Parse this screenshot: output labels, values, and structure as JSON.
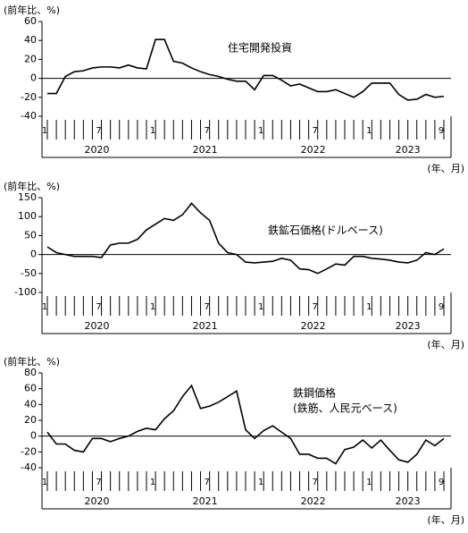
{
  "chart_data": [
    {
      "type": "line",
      "unit_label": "(前年比、%)",
      "xlabel": "(年、月)",
      "annotations": [
        "住宅開発投資"
      ],
      "categories": [
        "1",
        null,
        null,
        null,
        null,
        null,
        "7",
        null,
        null,
        null,
        null,
        null,
        "1",
        null,
        null,
        null,
        null,
        null,
        "7",
        null,
        null,
        null,
        null,
        null,
        "1",
        null,
        null,
        null,
        null,
        null,
        "7",
        null,
        null,
        null,
        null,
        null,
        "1",
        null,
        null,
        null,
        null,
        null,
        null,
        null,
        "9"
      ],
      "groups": [
        "2020",
        "2021",
        "2022",
        "2023"
      ],
      "series": [
        {
          "color": "#000000",
          "values": [
            -16,
            -16,
            2,
            7,
            8,
            11,
            12,
            12,
            11,
            14,
            11,
            10,
            41,
            41,
            18,
            16,
            11,
            7,
            4,
            2,
            -1,
            -3,
            -3,
            -12,
            3,
            3,
            -2,
            -8,
            -6,
            -10,
            -14,
            -14,
            -12,
            -16,
            -20,
            -14,
            -5,
            -5,
            -5,
            -17,
            -23,
            -22,
            -17,
            -20,
            -19
          ]
        }
      ],
      "ylim": [
        -40,
        60
      ],
      "yticks": [
        -40,
        -20,
        0,
        20,
        40,
        60
      ]
    },
    {
      "type": "line",
      "unit_label": "(前年比、%)",
      "xlabel": "(年、月)",
      "annotations": [
        "鉄鉱石価格(ドルベース)"
      ],
      "categories": [
        "1",
        null,
        null,
        null,
        null,
        null,
        "7",
        null,
        null,
        null,
        null,
        null,
        "1",
        null,
        null,
        null,
        null,
        null,
        "7",
        null,
        null,
        null,
        null,
        null,
        "1",
        null,
        null,
        null,
        null,
        null,
        "7",
        null,
        null,
        null,
        null,
        null,
        "1",
        null,
        null,
        null,
        null,
        null,
        null,
        null,
        "9"
      ],
      "groups": [
        "2020",
        "2021",
        "2022",
        "2023"
      ],
      "series": [
        {
          "color": "#000000",
          "values": [
            20,
            5,
            0,
            -5,
            -5,
            -5,
            -8,
            25,
            30,
            30,
            40,
            65,
            80,
            95,
            90,
            105,
            135,
            110,
            90,
            30,
            5,
            0,
            -20,
            -22,
            -20,
            -18,
            -10,
            -15,
            -38,
            -40,
            -50,
            -38,
            -25,
            -28,
            -5,
            -5,
            -10,
            -12,
            -15,
            -20,
            -22,
            -15,
            5,
            0,
            15
          ]
        }
      ],
      "ylim": [
        -100,
        150
      ],
      "yticks": [
        -100,
        -50,
        0,
        50,
        100,
        150
      ]
    },
    {
      "type": "line",
      "unit_label": "(前年比、%)",
      "xlabel": "(年、月)",
      "annotations": [
        "鉄鋼価格",
        "(鉄筋、人民元ベース)"
      ],
      "categories": [
        "1",
        null,
        null,
        null,
        null,
        null,
        "7",
        null,
        null,
        null,
        null,
        null,
        "1",
        null,
        null,
        null,
        null,
        null,
        "7",
        null,
        null,
        null,
        null,
        null,
        "1",
        null,
        null,
        null,
        null,
        null,
        "7",
        null,
        null,
        null,
        null,
        null,
        "1",
        null,
        null,
        null,
        null,
        null,
        null,
        null,
        "9"
      ],
      "groups": [
        "2020",
        "2021",
        "2022",
        "2023"
      ],
      "series": [
        {
          "color": "#000000",
          "values": [
            5,
            -10,
            -10,
            -18,
            -20,
            -3,
            -3,
            -7,
            -3,
            0,
            6,
            10,
            8,
            22,
            32,
            50,
            64,
            35,
            38,
            43,
            50,
            57,
            8,
            -3,
            7,
            13,
            5,
            -3,
            -23,
            -23,
            -28,
            -28,
            -35,
            -17,
            -14,
            -5,
            -15,
            -5,
            -18,
            -30,
            -33,
            -23,
            -5,
            -12,
            -3
          ]
        }
      ],
      "ylim": [
        -40,
        80
      ],
      "yticks": [
        -40,
        -20,
        0,
        20,
        40,
        60,
        80
      ]
    }
  ]
}
